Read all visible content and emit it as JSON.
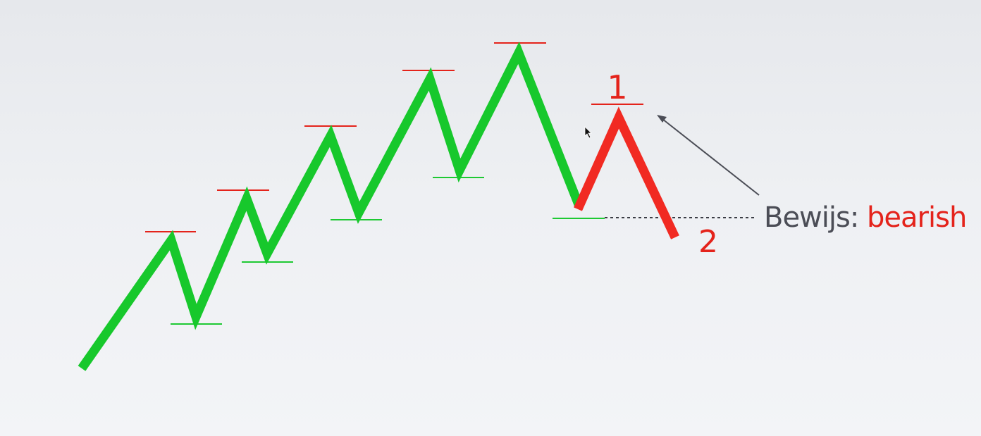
{
  "colors": {
    "uptrend": "#17c82c",
    "downtrend": "#f12a22",
    "high_marker": "#e4231b",
    "low_marker": "#1ec933",
    "annotation": "#4b4d56",
    "background": "#eceef1"
  },
  "annotation": {
    "prefix": "Bewijs: ",
    "highlight": "bearish"
  },
  "points": {
    "point_1_label": "1",
    "point_2_label": "2"
  },
  "cursor_icon": "arrow-cursor-icon"
}
